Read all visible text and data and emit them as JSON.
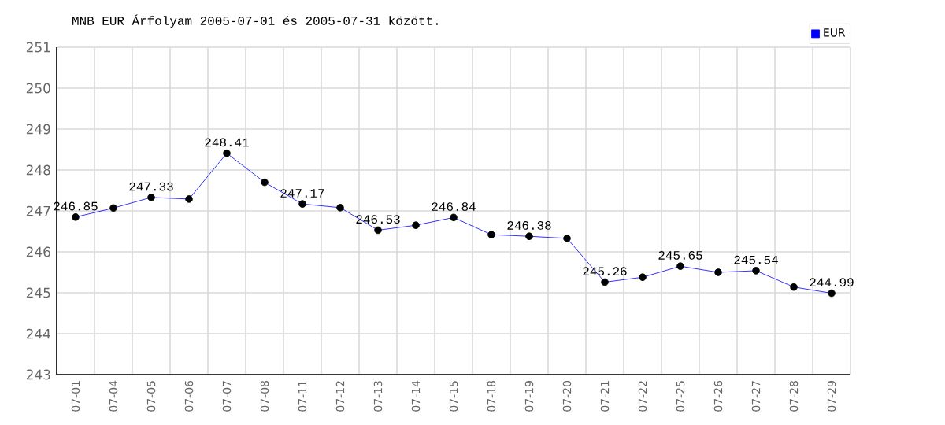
{
  "chart_data": {
    "type": "line",
    "title": "MNB EUR Árfolyam 2005-07-01 és 2005-07-31 között.",
    "categories": [
      "07-01",
      "07-04",
      "07-05",
      "07-06",
      "07-07",
      "07-08",
      "07-11",
      "07-12",
      "07-13",
      "07-14",
      "07-15",
      "07-18",
      "07-19",
      "07-20",
      "07-21",
      "07-22",
      "07-25",
      "07-26",
      "07-27",
      "07-28",
      "07-29"
    ],
    "series": [
      {
        "name": "EUR",
        "color": "#0000ff",
        "values": [
          246.85,
          247.07,
          247.33,
          247.29,
          248.41,
          247.7,
          247.17,
          247.08,
          246.53,
          246.65,
          246.84,
          246.42,
          246.38,
          246.33,
          245.26,
          245.38,
          245.65,
          245.5,
          245.54,
          245.14,
          244.99
        ],
        "value_labels": [
          "246.85",
          null,
          "247.33",
          null,
          "248.41",
          null,
          "247.17",
          null,
          "246.53",
          null,
          "246.84",
          null,
          "246.38",
          null,
          "245.26",
          null,
          "245.65",
          null,
          "245.54",
          null,
          "244.99"
        ]
      }
    ],
    "ylim": [
      243,
      251
    ],
    "yticks": [
      243,
      244,
      245,
      246,
      247,
      248,
      249,
      250,
      251
    ],
    "grid": true,
    "legend": "top right",
    "marker": "circle",
    "line_style": "solid"
  }
}
